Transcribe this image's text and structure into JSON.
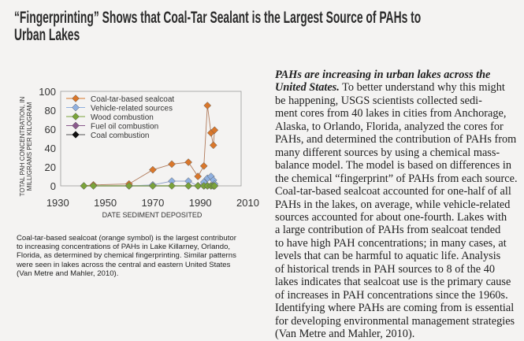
{
  "title": {
    "lines": [
      "“Fingerprinting” Shows that Coal-Tar Sealant is the Largest Source of PAHs to",
      "Urban Lakes"
    ]
  },
  "body": {
    "lead": [
      "PAHs are increasing in urban lakes across the",
      "United States."
    ],
    "first_line_rest": " To better understand why this might",
    "lines": [
      "be happening, USGS scientists collected sedi-",
      "ment cores from 40 lakes in cities from Anchorage,",
      "Alaska, to Orlando, Florida, analyzed the cores for",
      "PAHs, and determined the contribution of PAHs from",
      "many different sources by using a chemical mass-",
      "balance model. The model is based on differences in",
      "the chemical “fingerprint” of PAHs from each source.",
      "Coal-tar-based sealcoat accounted for one-half of all",
      "PAHs in the lakes, on average, while vehicle-related",
      "sources accounted for about one-fourth. Lakes with",
      "a large contribution of PAHs from sealcoat tended",
      "to have high PAH concentrations; in many cases, at",
      "levels that can be harmful to aquatic life. Analysis",
      "of historical trends in PAH sources to 8 of the 40",
      "lakes indicates that sealcoat use is the primary cause",
      "of increases in PAH concentrations since the 1960s.",
      "Identifying where PAHs are coming from is essential",
      "for developing environmental management strategies",
      "(Van Metre and Mahler, 2010)."
    ]
  },
  "caption": {
    "lines": [
      "Coal-tar-based sealcoat (orange symbol) is the largest contributor",
      "to increasing concentrations of PAHs in Lake Killarney, Orlando,",
      "Florida, as determined by chemical fingerprinting. Similar patterns",
      "were seen in lakes across the central and eastern United States",
      "(Van Metre and Mahler, 2010)."
    ]
  },
  "chart_data": {
    "type": "line",
    "xlabel": "DATE SEDIMENT DEPOSITED",
    "ylabel": [
      "TOTAL PAH CONCENTRATION, IN",
      "MILLIGRAMS PER KILOGRAM"
    ],
    "xlim": [
      1930,
      2010
    ],
    "ylim": [
      0,
      100
    ],
    "xticks": [
      1930,
      1950,
      1970,
      1990,
      2010
    ],
    "yticks": [
      0,
      20,
      40,
      60,
      80,
      100
    ],
    "legend_position": "top-left",
    "x": [
      1941,
      1945,
      1960,
      1970,
      1978,
      1985,
      1989,
      1991.5,
      1993,
      1994.5,
      1995.5,
      1996
    ],
    "series": [
      {
        "name": "Coal-tar-based sealcoat",
        "color": "#d9772b",
        "values": [
          0,
          1,
          2,
          17,
          23,
          25,
          10,
          21,
          85,
          56,
          43,
          59
        ]
      },
      {
        "name": "Vehicle-related sources",
        "color": "#8fb0e0",
        "values": [
          0,
          0,
          0,
          1,
          5,
          5,
          0,
          4,
          8,
          10,
          6,
          2
        ]
      },
      {
        "name": "Wood combustion",
        "color": "#7aa33a",
        "values": [
          0,
          0,
          0,
          0,
          0,
          0,
          0,
          0,
          0,
          0,
          0,
          0
        ]
      },
      {
        "name": "Fuel oil combustion",
        "color": "#8a5a8c",
        "values": [
          0,
          0,
          0,
          0,
          0,
          0,
          0,
          0,
          0,
          0,
          0,
          0
        ]
      },
      {
        "name": "Coal combustion",
        "color": "#111111",
        "values": [
          0,
          0,
          0,
          0,
          0,
          0,
          0,
          0,
          0,
          0,
          0,
          0
        ]
      }
    ]
  }
}
